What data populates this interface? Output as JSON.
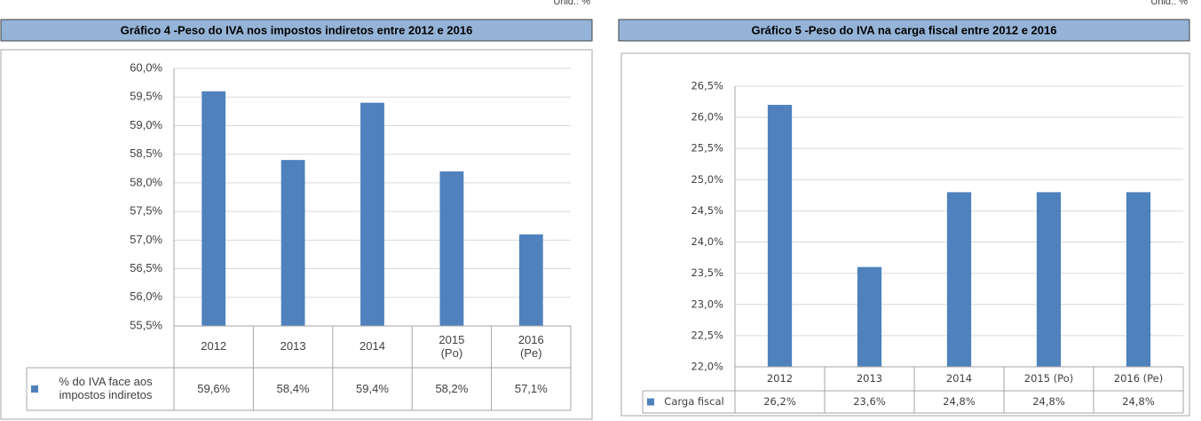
{
  "chart_data": [
    {
      "type": "bar",
      "title": "Gráfico 4 -Peso do IVA nos impostos indiretos entre 2012 e 2016",
      "unit": "Unid.: %",
      "categories": [
        "2012",
        "2013",
        "2014",
        "2015 (Po)",
        "2016 (Pe)"
      ],
      "series": [
        {
          "name": "% do IVA face aos impostos indiretos",
          "color": "#4f81bd",
          "values": [
            59.6,
            58.4,
            59.4,
            58.2,
            57.1
          ],
          "value_labels": [
            "59,6%",
            "58,4%",
            "59,4%",
            "58,2%",
            "57,1%"
          ]
        }
      ],
      "ylim": [
        55.5,
        60
      ],
      "yticks": [
        {
          "value": 55.5,
          "label": "55,5%"
        },
        {
          "value": 56,
          "label": "56,0%"
        },
        {
          "value": 56.5,
          "label": "56,5%"
        },
        {
          "value": 57,
          "label": "57,0%"
        },
        {
          "value": 57.5,
          "label": "57,5%"
        },
        {
          "value": 58,
          "label": "58,0%"
        },
        {
          "value": 58.5,
          "label": "58,5%"
        },
        {
          "value": 59,
          "label": "59,0%"
        },
        {
          "value": 59.5,
          "label": "59,5%"
        },
        {
          "value": 60,
          "label": "60,0%"
        }
      ],
      "grid": true
    },
    {
      "type": "bar",
      "title": "Gráfico 5 -Peso do IVA na carga fiscal entre 2012 e 2016",
      "unit": "Unid.: %",
      "categories": [
        "2012",
        "2013",
        "2014",
        "2015 (Po)",
        "2016 (Pe)"
      ],
      "series": [
        {
          "name": "Carga fiscal",
          "color": "#4f81bd",
          "values": [
            26.2,
            23.6,
            24.8,
            24.8,
            24.8
          ],
          "value_labels": [
            "26,2%",
            "23,6%",
            "24,8%",
            "24,8%",
            "24,8%"
          ]
        }
      ],
      "ylim": [
        22,
        26.5
      ],
      "yticks": [
        {
          "value": 22,
          "label": "22,0%"
        },
        {
          "value": 22.5,
          "label": "22,5%"
        },
        {
          "value": 23,
          "label": "23,0%"
        },
        {
          "value": 23.5,
          "label": "23,5%"
        },
        {
          "value": 24,
          "label": "24,0%"
        },
        {
          "value": 24.5,
          "label": "24,5%"
        },
        {
          "value": 25,
          "label": "25,0%"
        },
        {
          "value": 25.5,
          "label": "25,5%"
        },
        {
          "value": 26,
          "label": "26,0%"
        },
        {
          "value": 26.5,
          "label": "26,5%"
        }
      ],
      "grid": true
    }
  ]
}
